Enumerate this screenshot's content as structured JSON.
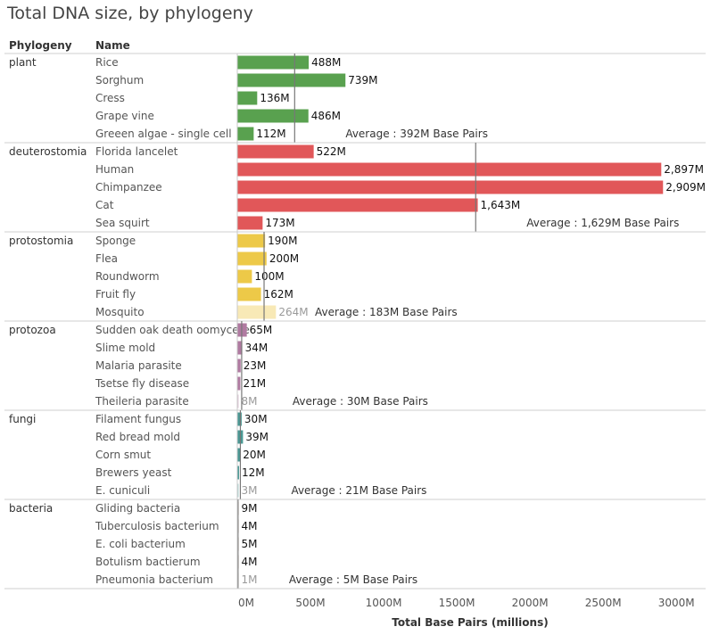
{
  "chart_data": {
    "type": "bar",
    "title": "Total DNA size, by phylogeny",
    "column_headers": {
      "group": "Phylogeny",
      "name": "Name"
    },
    "xlabel": "Total Base Pairs (millions)",
    "xlim": [
      0,
      3200
    ],
    "xticks": [
      0,
      500,
      1000,
      1500,
      2000,
      2500,
      3000
    ],
    "xtick_labels": [
      "0M",
      "500M",
      "1000M",
      "1500M",
      "2000M",
      "2500M",
      "3000M"
    ],
    "groups": [
      {
        "name": "plant",
        "color": "#59a14f",
        "average": 392,
        "average_label": "Average : 392M Base Pairs",
        "items": [
          {
            "name": "Rice",
            "value": 488,
            "label": "488M"
          },
          {
            "name": "Sorghum",
            "value": 739,
            "label": "739M"
          },
          {
            "name": "Cress",
            "value": 136,
            "label": "136M"
          },
          {
            "name": "Grape vine",
            "value": 486,
            "label": "486M"
          },
          {
            "name": "Greeen algae - single cell",
            "value": 112,
            "label": "112M"
          }
        ]
      },
      {
        "name": "deuterostomia",
        "color": "#e15759",
        "average": 1629,
        "average_label": "Average : 1,629M Base Pairs",
        "items": [
          {
            "name": "Florida lancelet",
            "value": 522,
            "label": "522M"
          },
          {
            "name": "Human",
            "value": 2897,
            "label": "2,897M"
          },
          {
            "name": "Chimpanzee",
            "value": 2909,
            "label": "2,909M"
          },
          {
            "name": "Cat",
            "value": 1643,
            "label": "1,643M"
          },
          {
            "name": "Sea squirt",
            "value": 173,
            "label": "173M"
          }
        ]
      },
      {
        "name": "protostomia",
        "color": "#edc948",
        "average": 183,
        "average_label": "Average : 183M Base Pairs",
        "items": [
          {
            "name": "Sponge",
            "value": 190,
            "label": "190M"
          },
          {
            "name": "Flea",
            "value": 200,
            "label": "200M"
          },
          {
            "name": "Roundworm",
            "value": 100,
            "label": "100M"
          },
          {
            "name": "Fruit fly",
            "value": 162,
            "label": "162M"
          },
          {
            "name": "Mosquito",
            "value": 264,
            "label": "264M",
            "faded": true
          }
        ]
      },
      {
        "name": "protozoa",
        "color": "#b07aa1",
        "average": 30,
        "average_label": "Average : 30M Base Pairs",
        "items": [
          {
            "name": "Sudden oak death oomycete",
            "value": 65,
            "label": "65M"
          },
          {
            "name": "Slime mold",
            "value": 34,
            "label": "34M"
          },
          {
            "name": "Malaria parasite",
            "value": 23,
            "label": "23M"
          },
          {
            "name": "Tsetse fly disease",
            "value": 21,
            "label": "21M"
          },
          {
            "name": "Theileria parasite",
            "value": 8,
            "label": "8M",
            "faded": true
          }
        ]
      },
      {
        "name": "fungi",
        "color": "#499894",
        "average": 21,
        "average_label": "Average : 21M Base Pairs",
        "items": [
          {
            "name": "Filament fungus",
            "value": 30,
            "label": "30M"
          },
          {
            "name": "Red bread mold",
            "value": 39,
            "label": "39M"
          },
          {
            "name": "Corn smut",
            "value": 20,
            "label": "20M"
          },
          {
            "name": "Brewers yeast",
            "value": 12,
            "label": "12M"
          },
          {
            "name": "E. cuniculi",
            "value": 3,
            "label": "3M",
            "faded": true
          }
        ]
      },
      {
        "name": "bacteria",
        "color": "#9c755f",
        "average": 5,
        "average_label": "Average : 5M Base Pairs",
        "items": [
          {
            "name": "Gliding bacteria",
            "value": 9,
            "label": "9M"
          },
          {
            "name": "Tuberculosis bacterium",
            "value": 4,
            "label": "4M"
          },
          {
            "name": "E. coli bacterium",
            "value": 5,
            "label": "5M"
          },
          {
            "name": "Botulism bactierum",
            "value": 4,
            "label": "4M"
          },
          {
            "name": "Pneumonia bacterium",
            "value": 1,
            "label": "1M",
            "faded": true
          }
        ]
      }
    ]
  }
}
